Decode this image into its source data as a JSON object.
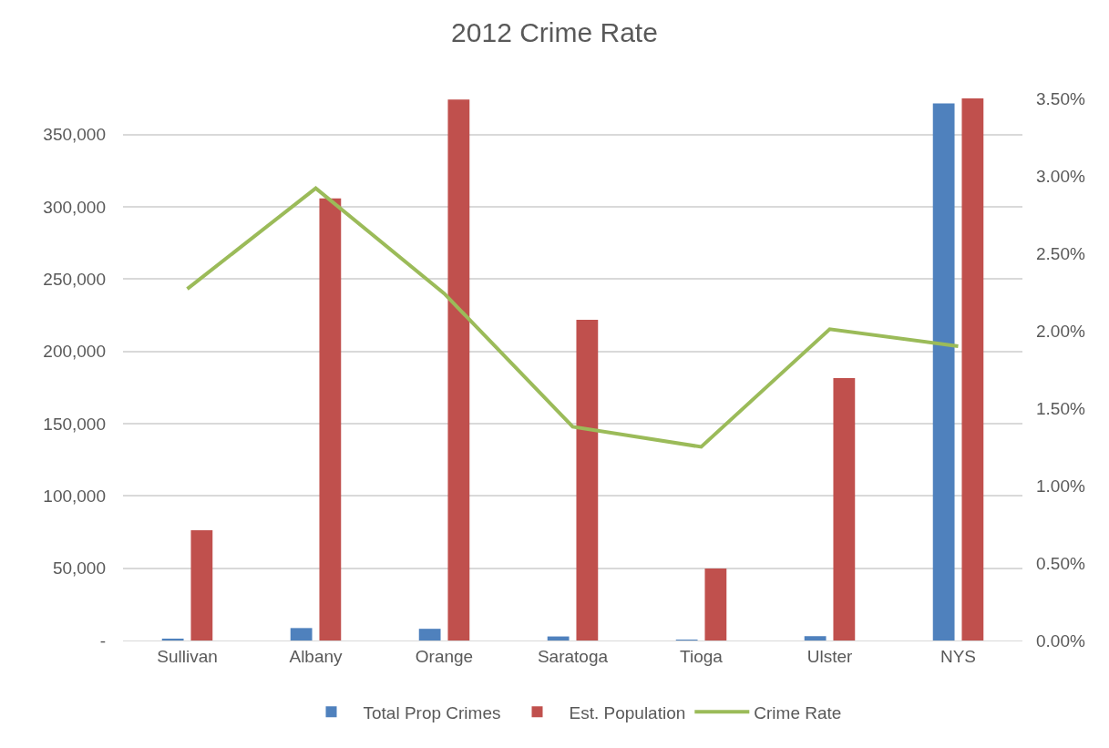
{
  "chart_data": {
    "type": "bar",
    "title": "2012 Crime Rate",
    "categories": [
      "Sullivan",
      "Albany",
      "Orange",
      "Saratoga",
      "Tioga",
      "Ulster",
      "NYS"
    ],
    "series": [
      {
        "name": "Total Prop Crimes",
        "color": "#4f81bd",
        "values": [
          1300,
          8600,
          8100,
          2800,
          500,
          3000,
          371600
        ]
      },
      {
        "name": "Est. Population",
        "color": "#c0504d",
        "values": [
          76300,
          305800,
          374200,
          221900,
          49800,
          181500,
          375000
        ]
      },
      {
        "name": "Crime Rate",
        "type": "line",
        "axis": "y2",
        "color": "#9bbb59",
        "values": [
          2.27,
          2.92,
          2.24,
          1.38,
          1.25,
          2.01,
          1.9
        ]
      }
    ],
    "ylim": [
      0,
      375000
    ],
    "yticks": [
      {
        "value": 0,
        "label": "-"
      },
      {
        "value": 50000,
        "label": "50,000"
      },
      {
        "value": 100000,
        "label": "100,000"
      },
      {
        "value": 150000,
        "label": "150,000"
      },
      {
        "value": 200000,
        "label": "200,000"
      },
      {
        "value": 250000,
        "label": "250,000"
      },
      {
        "value": 300000,
        "label": "300,000"
      },
      {
        "value": 350000,
        "label": "350,000"
      }
    ],
    "y2lim": [
      0,
      3.5
    ],
    "y2ticks": [
      {
        "value": 0,
        "label": "0.00%"
      },
      {
        "value": 0.5,
        "label": "0.50%"
      },
      {
        "value": 1,
        "label": "1.00%"
      },
      {
        "value": 1.5,
        "label": "1.50%"
      },
      {
        "value": 2,
        "label": "2.00%"
      },
      {
        "value": 2.5,
        "label": "2.50%"
      },
      {
        "value": 3,
        "label": "3.00%"
      },
      {
        "value": 3.5,
        "label": "3.50%"
      }
    ],
    "grid": "y",
    "legend": "bottom",
    "marker": "none",
    "line_style": "solid"
  }
}
